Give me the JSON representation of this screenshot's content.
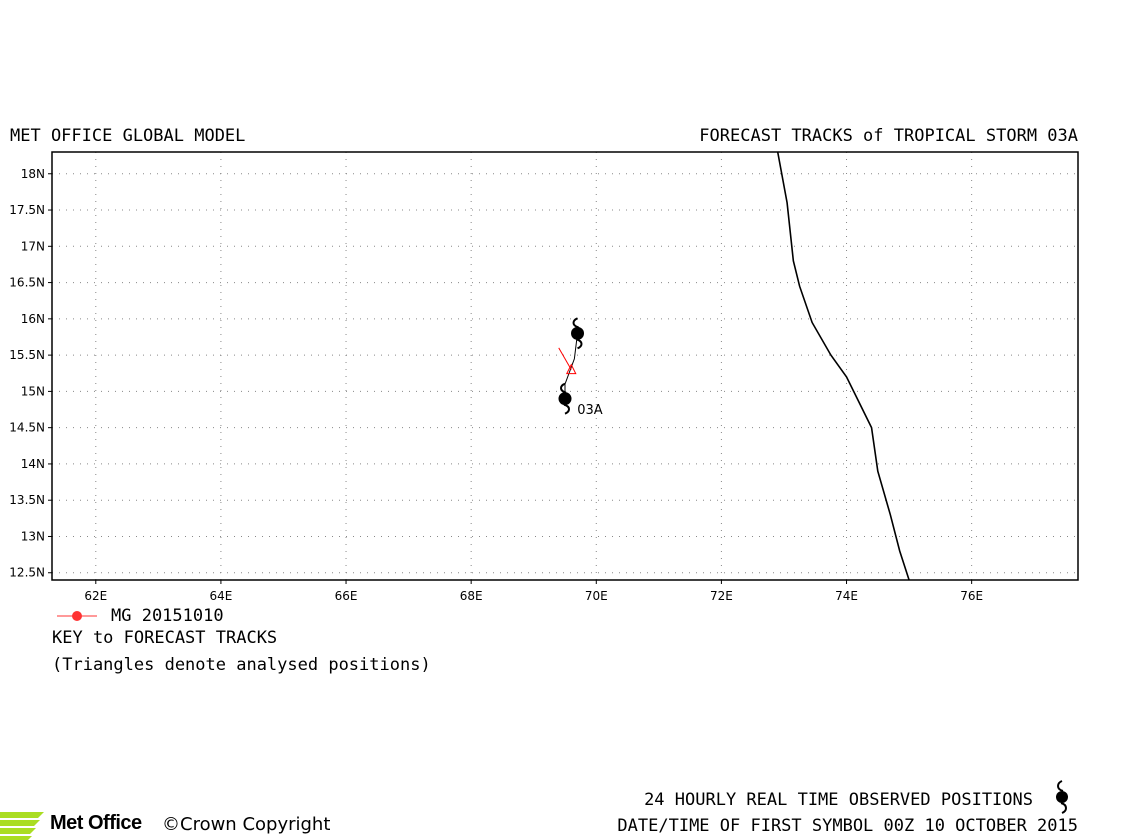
{
  "header": {
    "left_title": "MET OFFICE GLOBAL MODEL",
    "right_title": "FORECAST TRACKS of TROPICAL STORM 03A"
  },
  "map": {
    "lon_range": [
      61.3,
      77.7
    ],
    "lat_range": [
      12.4,
      18.3
    ],
    "lon_ticks": [
      62,
      64,
      66,
      68,
      70,
      72,
      74,
      76
    ],
    "lat_ticks": [
      12.5,
      13,
      13.5,
      14,
      14.5,
      15,
      15.5,
      16,
      16.5,
      17,
      17.5,
      18
    ],
    "lon_tick_labels": [
      "62E",
      "64E",
      "66E",
      "68E",
      "70E",
      "72E",
      "74E",
      "76E"
    ],
    "lat_tick_labels": [
      "12.5N",
      "13N",
      "13.5N",
      "14N",
      "14.5N",
      "15N",
      "15.5N",
      "16N",
      "16.5N",
      "17N",
      "17.5N",
      "18N"
    ],
    "grid": true,
    "grid_style": "dotted",
    "coastline": [
      [
        72.9,
        18.3
      ],
      [
        73.05,
        17.6
      ],
      [
        73.15,
        16.8
      ],
      [
        73.25,
        16.45
      ],
      [
        73.45,
        15.95
      ],
      [
        73.75,
        15.5
      ],
      [
        74.0,
        15.2
      ],
      [
        74.2,
        14.85
      ],
      [
        74.4,
        14.5
      ],
      [
        74.5,
        13.9
      ],
      [
        74.7,
        13.3
      ],
      [
        74.85,
        12.8
      ],
      [
        75.0,
        12.4
      ]
    ],
    "storm_label": "03A",
    "storm_label_position": [
      69.6,
      14.8
    ],
    "observed_track": [
      [
        69.5,
        14.9
      ],
      [
        69.5,
        15.1
      ],
      [
        69.65,
        15.45
      ],
      [
        69.7,
        15.8
      ]
    ],
    "observed_symbols": [
      [
        69.5,
        14.9
      ],
      [
        69.7,
        15.8
      ]
    ],
    "forecast_track": [
      [
        69.4,
        15.6
      ],
      [
        69.6,
        15.3
      ]
    ],
    "analysed_position": [
      69.6,
      15.3
    ],
    "forecast_color": "#ff0000"
  },
  "legend": {
    "series": [
      {
        "name": "MG 20151010",
        "color": "#ff3333"
      }
    ],
    "key_title": "KEY to FORECAST TRACKS",
    "note": "(Triangles denote analysed positions)"
  },
  "footer": {
    "observed_text": "24 HOURLY REAL TIME OBSERVED POSITIONS",
    "datetime_text": "DATE/TIME OF FIRST SYMBOL 00Z 10 OCTOBER 2015",
    "logo_text": "Met Office",
    "copyright_text": "©Crown Copyright",
    "logo_color": "#aadd22"
  }
}
